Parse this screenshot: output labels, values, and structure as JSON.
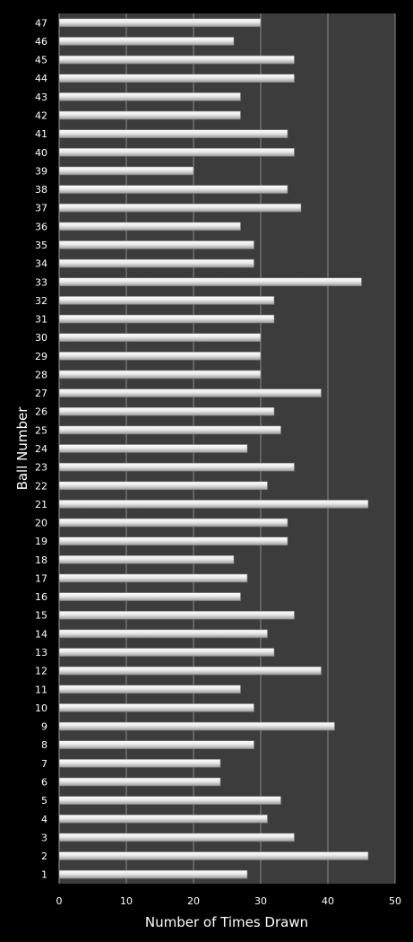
{
  "chart_data": {
    "type": "bar",
    "orientation": "horizontal",
    "xlabel": "Number of Times Drawn",
    "ylabel": "Ball Number",
    "xlim": [
      0,
      50
    ],
    "x_ticks": [
      0,
      10,
      20,
      30,
      40,
      50
    ],
    "grid": "vertical major gridlines",
    "colors": {
      "plot_background": "#3c3c3c",
      "page_background": "#000000",
      "bar": "#e6e6e6",
      "gridline": "#8a8a8a",
      "text": "#ffffff"
    },
    "categories": [
      "1",
      "2",
      "3",
      "4",
      "5",
      "6",
      "7",
      "8",
      "9",
      "10",
      "11",
      "12",
      "13",
      "14",
      "15",
      "16",
      "17",
      "18",
      "19",
      "20",
      "21",
      "22",
      "23",
      "24",
      "25",
      "26",
      "27",
      "28",
      "29",
      "30",
      "31",
      "32",
      "33",
      "34",
      "35",
      "36",
      "37",
      "38",
      "39",
      "40",
      "41",
      "42",
      "43",
      "44",
      "45",
      "46",
      "47"
    ],
    "values": [
      28,
      46,
      35,
      31,
      33,
      24,
      24,
      29,
      41,
      29,
      27,
      39,
      32,
      31,
      35,
      27,
      28,
      26,
      34,
      34,
      46,
      31,
      35,
      28,
      33,
      32,
      39,
      30,
      30,
      30,
      32,
      32,
      45,
      29,
      29,
      27,
      36,
      34,
      20,
      35,
      34,
      27,
      27,
      35,
      35,
      26,
      30
    ]
  }
}
